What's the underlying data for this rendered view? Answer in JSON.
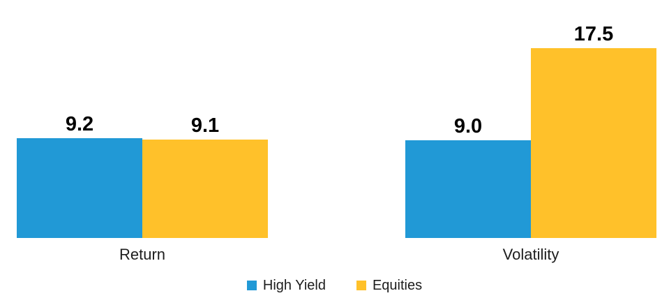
{
  "chart_data": {
    "type": "bar",
    "title": "",
    "xlabel": "",
    "ylabel": "",
    "categories": [
      "Return",
      "Volatility"
    ],
    "series": [
      {
        "name": "High Yield",
        "color": "#2199D6",
        "values": [
          9.2,
          9.0
        ],
        "labels": [
          "9.2",
          "9.0"
        ]
      },
      {
        "name": "Equities",
        "color": "#FFC12A",
        "values": [
          9.1,
          17.5
        ],
        "labels": [
          "9.1",
          "17.5"
        ]
      }
    ],
    "ylim": [
      0,
      17.5
    ],
    "grid": false,
    "axes_visible": false,
    "value_labels_shown": true,
    "legend_position": "bottom-center"
  },
  "legend": {
    "items": [
      {
        "label": "High Yield",
        "color": "#2199D6"
      },
      {
        "label": "Equities",
        "color": "#FFC12A"
      }
    ]
  },
  "colors": {
    "high_yield": "#2199D6",
    "equities": "#FFC12A",
    "value_label_text": "#000000",
    "category_text": "#1D1D1D",
    "legend_text": "#1D1D1D",
    "background": "#FFFFFF"
  }
}
